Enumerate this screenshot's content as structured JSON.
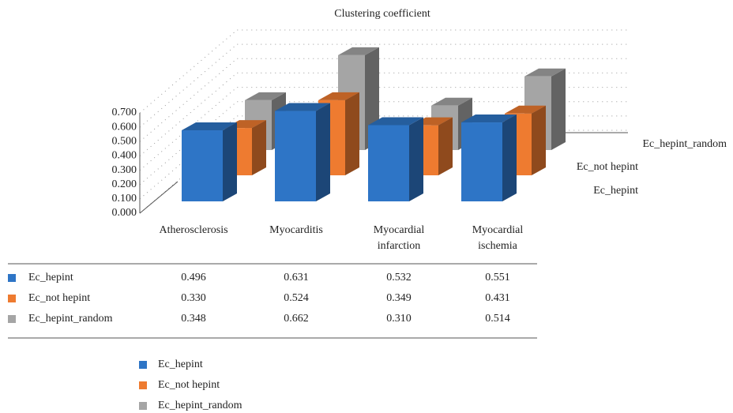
{
  "chart_data": {
    "type": "bar3d",
    "title": "Clustering coefficient",
    "categories": [
      "Atherosclerosis",
      "Myocarditis",
      "Myocardial infarction",
      "Myocardial ischemia"
    ],
    "series": [
      {
        "name": "Ec_hepint",
        "color": "#2e75c6",
        "values": [
          0.496,
          0.631,
          0.532,
          0.551
        ],
        "value_labels": [
          "0.496",
          "0.631",
          "0.532",
          "0.551"
        ]
      },
      {
        "name": "Ec_not hepint",
        "color": "#ee7b30",
        "values": [
          0.33,
          0.524,
          0.349,
          0.431
        ],
        "value_labels": [
          "0.330",
          "0.524",
          "0.349",
          "0.431"
        ]
      },
      {
        "name": "Ec_hepint_random",
        "color": "#a5a5a5",
        "values": [
          0.348,
          0.662,
          0.31,
          0.514
        ],
        "value_labels": [
          "0.348",
          "0.662",
          "0.310",
          "0.514"
        ]
      }
    ],
    "ylim": [
      0,
      0.7
    ],
    "yticks": [
      {
        "value": 0,
        "label": "0.000"
      },
      {
        "value": 0.1,
        "label": "0.100"
      },
      {
        "value": 0.2,
        "label": "0.200"
      },
      {
        "value": 0.3,
        "label": "0.300"
      },
      {
        "value": 0.4,
        "label": "0.400"
      },
      {
        "value": 0.5,
        "label": "0.500"
      },
      {
        "value": 0.6,
        "label": "0.600"
      },
      {
        "value": 0.7,
        "label": "0.700"
      }
    ],
    "grid": true
  }
}
